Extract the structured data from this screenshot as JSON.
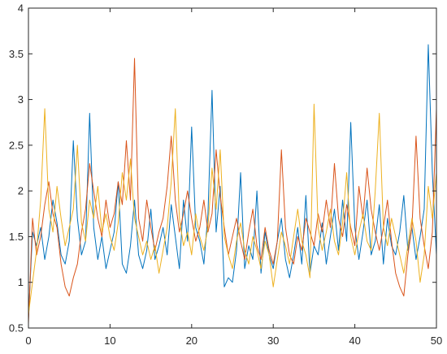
{
  "chart_data": {
    "type": "line",
    "title": "",
    "xlabel": "",
    "ylabel": "",
    "xlim": [
      0,
      50
    ],
    "ylim": [
      0.5,
      4
    ],
    "grid": false,
    "legend": "none",
    "x_ticks": [
      0,
      10,
      20,
      30,
      40,
      50
    ],
    "y_ticks": [
      0.5,
      1,
      1.5,
      2,
      2.5,
      3,
      3.5,
      4
    ],
    "x_tick_labels": [
      "0",
      "10",
      "20",
      "30",
      "40",
      "50"
    ],
    "y_tick_labels": [
      "0.5",
      "1",
      "1.5",
      "2",
      "2.5",
      "3",
      "3.5",
      "4"
    ],
    "series": [
      {
        "color": "#0072bd",
        "x": [
          0,
          0.5,
          1,
          1.5,
          2,
          2.5,
          3,
          3.5,
          4,
          4.5,
          5,
          5.5,
          6,
          6.5,
          7,
          7.5,
          8,
          8.5,
          9,
          9.5,
          10,
          10.5,
          11,
          11.5,
          12,
          12.5,
          13,
          13.5,
          14,
          14.5,
          15,
          15.5,
          16,
          16.5,
          17,
          17.5,
          18,
          18.5,
          19,
          19.5,
          20,
          20.5,
          21,
          21.5,
          22,
          22.5,
          23,
          23.5,
          24,
          24.5,
          25,
          25.5,
          26,
          26.5,
          27,
          27.5,
          28,
          28.5,
          29,
          29.5,
          30,
          30.5,
          31,
          31.5,
          32,
          32.5,
          33,
          33.5,
          34,
          34.5,
          35,
          35.5,
          36,
          36.5,
          37,
          37.5,
          38,
          38.5,
          39,
          39.5,
          40,
          40.5,
          41,
          41.5,
          42,
          42.5,
          43,
          43.5,
          44,
          44.5,
          45,
          45.5,
          46,
          46.5,
          47,
          47.5,
          48,
          48.5,
          49,
          49.5,
          50
        ],
        "y": [
          0.6,
          1.55,
          1.4,
          1.6,
          1.25,
          1.5,
          1.9,
          1.65,
          1.3,
          1.2,
          1.45,
          2.55,
          1.7,
          1.3,
          1.45,
          2.85,
          1.6,
          1.25,
          1.5,
          1.15,
          1.35,
          1.55,
          2.1,
          1.2,
          1.1,
          1.4,
          1.9,
          1.3,
          1.15,
          1.35,
          1.8,
          1.25,
          1.4,
          1.6,
          1.3,
          1.85,
          1.5,
          1.15,
          1.9,
          1.45,
          2.7,
          1.6,
          1.45,
          1.2,
          1.75,
          3.1,
          1.55,
          2.05,
          0.95,
          1.05,
          1.0,
          1.35,
          2.2,
          1.15,
          1.4,
          1.25,
          2.0,
          1.1,
          1.55,
          1.3,
          1.15,
          1.45,
          1.7,
          1.25,
          1.05,
          1.3,
          1.6,
          1.2,
          1.95,
          1.1,
          1.4,
          1.3,
          1.65,
          1.2,
          1.5,
          1.8,
          1.35,
          1.9,
          1.45,
          2.75,
          1.6,
          1.25,
          1.55,
          1.9,
          1.3,
          1.45,
          1.85,
          1.2,
          1.7,
          1.4,
          1.3,
          1.55,
          1.95,
          1.35,
          1.6,
          1.25,
          1.5,
          1.8,
          3.6,
          2.2,
          1.3
        ]
      },
      {
        "color": "#d95319",
        "x": [
          0,
          0.5,
          1,
          1.5,
          2,
          2.5,
          3,
          3.5,
          4,
          4.5,
          5,
          5.5,
          6,
          6.5,
          7,
          7.5,
          8,
          8.5,
          9,
          9.5,
          10,
          10.5,
          11,
          11.5,
          12,
          12.5,
          13,
          13.5,
          14,
          14.5,
          15,
          15.5,
          16,
          16.5,
          17,
          17.5,
          18,
          18.5,
          19,
          19.5,
          20,
          20.5,
          21,
          21.5,
          22,
          22.5,
          23,
          23.5,
          24,
          24.5,
          25,
          25.5,
          26,
          26.5,
          27,
          27.5,
          28,
          28.5,
          29,
          29.5,
          30,
          30.5,
          31,
          31.5,
          32,
          32.5,
          33,
          33.5,
          34,
          34.5,
          35,
          35.5,
          36,
          36.5,
          37,
          37.5,
          38,
          38.5,
          39,
          39.5,
          40,
          40.5,
          41,
          41.5,
          42,
          42.5,
          43,
          43.5,
          44,
          44.5,
          45,
          45.5,
          46,
          46.5,
          47,
          47.5,
          48,
          48.5,
          49,
          49.5,
          50
        ],
        "y": [
          0.55,
          1.7,
          1.3,
          1.5,
          1.85,
          2.1,
          1.75,
          1.6,
          1.2,
          0.95,
          0.85,
          1.05,
          1.2,
          1.55,
          1.8,
          2.3,
          2.0,
          1.7,
          1.5,
          1.9,
          1.6,
          1.75,
          2.1,
          1.85,
          2.55,
          1.9,
          3.45,
          1.7,
          1.45,
          1.9,
          1.6,
          1.35,
          1.55,
          1.7,
          2.05,
          2.6,
          1.9,
          1.55,
          1.75,
          2.0,
          1.7,
          1.45,
          1.6,
          1.9,
          1.55,
          1.75,
          2.45,
          1.95,
          1.6,
          1.3,
          1.5,
          1.7,
          1.45,
          1.25,
          1.55,
          1.8,
          1.4,
          1.25,
          1.6,
          1.35,
          1.2,
          1.45,
          2.45,
          1.6,
          1.3,
          1.2,
          1.5,
          1.35,
          1.7,
          1.55,
          1.4,
          1.75,
          1.55,
          1.9,
          1.6,
          2.3,
          1.7,
          1.5,
          1.85,
          1.6,
          1.4,
          2.05,
          1.7,
          2.25,
          1.8,
          1.55,
          1.35,
          1.6,
          1.9,
          1.45,
          1.1,
          0.95,
          0.85,
          1.3,
          1.6,
          2.6,
          1.7,
          1.4,
          1.15,
          1.55,
          2.9
        ]
      },
      {
        "color": "#edb120",
        "x": [
          0,
          0.5,
          1,
          1.5,
          2,
          2.5,
          3,
          3.5,
          4,
          4.5,
          5,
          5.5,
          6,
          6.5,
          7,
          7.5,
          8,
          8.5,
          9,
          9.5,
          10,
          10.5,
          11,
          11.5,
          12,
          12.5,
          13,
          13.5,
          14,
          14.5,
          15,
          15.5,
          16,
          16.5,
          17,
          17.5,
          18,
          18.5,
          19,
          19.5,
          20,
          20.5,
          21,
          21.5,
          22,
          22.5,
          23,
          23.5,
          24,
          24.5,
          25,
          25.5,
          26,
          26.5,
          27,
          27.5,
          28,
          28.5,
          29,
          29.5,
          30,
          30.5,
          31,
          31.5,
          32,
          32.5,
          33,
          33.5,
          34,
          34.5,
          35,
          35.5,
          36,
          36.5,
          37,
          37.5,
          38,
          38.5,
          39,
          39.5,
          40,
          40.5,
          41,
          41.5,
          42,
          42.5,
          43,
          43.5,
          44,
          44.5,
          45,
          45.5,
          46,
          46.5,
          47,
          47.5,
          48,
          48.5,
          49,
          49.5,
          50
        ],
        "y": [
          0.65,
          1.0,
          1.35,
          1.9,
          2.9,
          1.8,
          1.55,
          2.05,
          1.7,
          1.4,
          1.6,
          1.8,
          2.5,
          1.65,
          1.45,
          1.9,
          1.7,
          2.05,
          1.55,
          1.75,
          1.5,
          1.35,
          1.65,
          2.2,
          1.9,
          2.35,
          1.7,
          1.5,
          1.3,
          1.45,
          1.25,
          1.4,
          1.1,
          1.35,
          1.6,
          2.1,
          2.9,
          1.7,
          1.4,
          1.55,
          1.3,
          1.75,
          1.5,
          1.35,
          1.6,
          2.25,
          1.8,
          2.45,
          1.5,
          1.3,
          1.15,
          1.45,
          1.65,
          1.35,
          1.2,
          1.5,
          1.35,
          1.15,
          1.45,
          1.3,
          0.95,
          1.25,
          1.55,
          1.4,
          1.2,
          1.5,
          1.8,
          1.45,
          1.3,
          1.05,
          2.95,
          1.6,
          1.35,
          1.55,
          1.8,
          1.45,
          1.3,
          1.65,
          2.2,
          1.5,
          1.3,
          1.55,
          1.75,
          1.45,
          1.35,
          2.0,
          2.85,
          1.6,
          1.4,
          1.7,
          1.5,
          1.3,
          1.1,
          1.4,
          1.7,
          1.45,
          1.0,
          1.3,
          2.05,
          1.7,
          2.2
        ]
      }
    ]
  }
}
